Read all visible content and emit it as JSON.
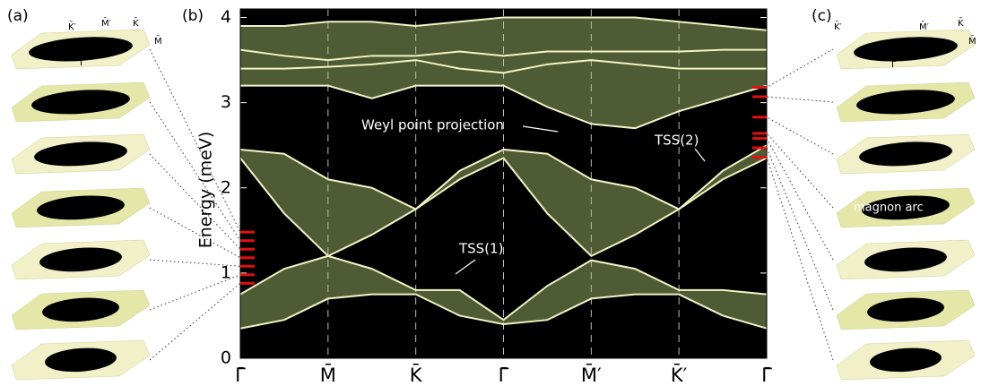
{
  "chart_data": {
    "type": "band",
    "ylabel": "Energy (meV)",
    "panel_labels": [
      "(a)",
      "(b)",
      "(c)"
    ],
    "annotations": [
      "Weyl point projection",
      "TSS(1)",
      "TSS(2)",
      "magnon arc"
    ],
    "inset_labels_left": [
      "K̄′",
      "M̄′",
      "K̄",
      "M̄",
      "Γ̄"
    ],
    "inset_labels_right": [
      "K̄′",
      "M̄′",
      "K̄",
      "M̄",
      "Γ̄"
    ],
    "xlim": [
      0,
      6
    ],
    "ylim": [
      0,
      4.1
    ],
    "xticks": [
      {
        "value": 0,
        "label": "Γ̄"
      },
      {
        "value": 1,
        "label": "M̄"
      },
      {
        "value": 2,
        "label": "K̄"
      },
      {
        "value": 3,
        "label": "Γ̄"
      },
      {
        "value": 4,
        "label": "M̄′"
      },
      {
        "value": 5,
        "label": "K̄′"
      },
      {
        "value": 6,
        "label": "Γ̄"
      }
    ],
    "yticks": [
      0,
      1,
      2,
      3,
      4
    ],
    "x": [
      0,
      0.5,
      1,
      1.5,
      2,
      2.5,
      3,
      3.5,
      4,
      4.5,
      5,
      5.5,
      6
    ],
    "series": [
      {
        "color": "#f2f2c4",
        "values": [
          3.9,
          3.9,
          3.95,
          3.95,
          3.9,
          3.95,
          4.0,
          4.0,
          4.0,
          4.0,
          3.95,
          3.9,
          3.85
        ]
      },
      {
        "color": "#f2f2c4",
        "values": [
          3.62,
          3.55,
          3.5,
          3.55,
          3.55,
          3.6,
          3.55,
          3.6,
          3.6,
          3.6,
          3.6,
          3.62,
          3.62
        ]
      },
      {
        "color": "#f2f2c4",
        "values": [
          3.4,
          3.4,
          3.42,
          3.45,
          3.5,
          3.4,
          3.35,
          3.45,
          3.5,
          3.45,
          3.4,
          3.4,
          3.4
        ]
      },
      {
        "color": "#f2f2c4",
        "values": [
          3.2,
          3.2,
          3.2,
          3.05,
          3.2,
          3.2,
          3.2,
          2.95,
          2.75,
          2.7,
          2.9,
          3.05,
          3.2
        ]
      },
      {
        "color": "#f2f2c4",
        "values": [
          2.45,
          2.4,
          2.1,
          2.0,
          1.75,
          2.2,
          2.45,
          2.4,
          2.1,
          2.0,
          1.75,
          2.2,
          2.5
        ]
      },
      {
        "color": "#f2f2c4",
        "values": [
          2.35,
          1.7,
          1.2,
          1.45,
          1.75,
          2.1,
          2.35,
          1.7,
          1.2,
          1.45,
          1.75,
          2.1,
          2.35
        ]
      },
      {
        "color": "#f2f2c4",
        "values": [
          0.75,
          1.05,
          1.2,
          1.05,
          0.8,
          0.8,
          0.45,
          0.85,
          1.15,
          1.05,
          0.8,
          0.8,
          0.75
        ]
      },
      {
        "color": "#f2f2c4",
        "values": [
          0.35,
          0.45,
          0.7,
          0.75,
          0.75,
          0.5,
          0.4,
          0.45,
          0.7,
          0.75,
          0.75,
          0.5,
          0.35
        ]
      }
    ],
    "fill_pairs": [
      [
        0,
        3
      ],
      [
        4,
        5
      ],
      [
        6,
        7
      ]
    ],
    "fill_color": "#56653a",
    "background": "#000000",
    "slice_color": "#e01010",
    "slice_energies_left": [
      1.48,
      1.38,
      1.28,
      1.18,
      1.08,
      0.98,
      0.88
    ],
    "slice_energies_right": [
      3.18,
      3.07,
      2.83,
      2.64,
      2.58,
      2.47,
      2.36
    ]
  }
}
